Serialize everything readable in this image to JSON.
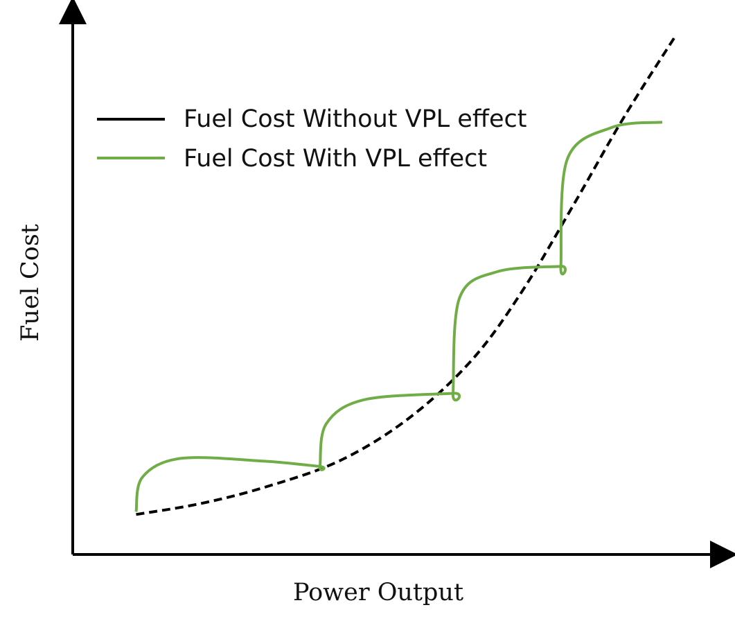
{
  "chart_data": {
    "type": "line",
    "title": "",
    "xlabel": "Power Output",
    "ylabel": "Fuel Cost",
    "ticks_shown": false,
    "grid": false,
    "legend_position": "top-left",
    "xlim": [
      0,
      1
    ],
    "ylim": [
      0,
      1
    ],
    "series": [
      {
        "name": "Fuel Cost Without VPL effect",
        "color": "#000000",
        "style": "dashed",
        "points": [
          [
            0.1,
            0.075
          ],
          [
            0.2,
            0.095
          ],
          [
            0.3,
            0.125
          ],
          [
            0.42,
            0.175
          ],
          [
            0.53,
            0.255
          ],
          [
            0.63,
            0.365
          ],
          [
            0.71,
            0.495
          ],
          [
            0.79,
            0.655
          ],
          [
            0.87,
            0.82
          ],
          [
            0.95,
            0.97
          ]
        ]
      },
      {
        "name": "Fuel Cost With VPL effect",
        "color": "#70ad47",
        "style": "solid",
        "points": [
          [
            0.1,
            0.08
          ],
          [
            0.11,
            0.145
          ],
          [
            0.17,
            0.18
          ],
          [
            0.3,
            0.175
          ],
          [
            0.39,
            0.165
          ],
          [
            0.39,
            0.165
          ],
          [
            0.4,
            0.245
          ],
          [
            0.46,
            0.29
          ],
          [
            0.6,
            0.302
          ],
          [
            0.6,
            0.302
          ],
          [
            0.61,
            0.48
          ],
          [
            0.67,
            0.53
          ],
          [
            0.77,
            0.54
          ],
          [
            0.77,
            0.54
          ],
          [
            0.78,
            0.74
          ],
          [
            0.85,
            0.8
          ],
          [
            0.93,
            0.81
          ]
        ]
      }
    ]
  }
}
